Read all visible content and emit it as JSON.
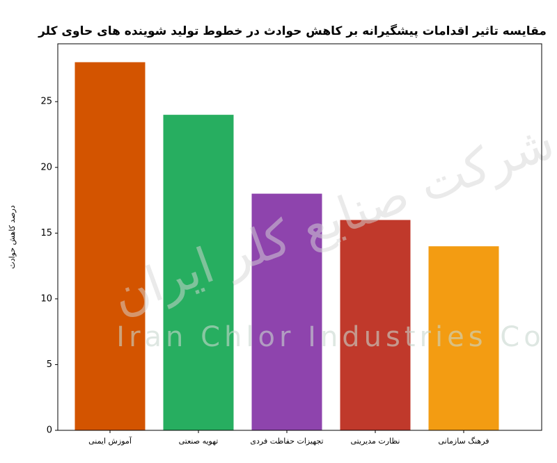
{
  "chart_data": {
    "type": "bar",
    "title": "مقایسه تاثیر اقدامات پیشگیرانه بر کاهش حوادث در خطوط تولید شوینده های حاوی کلر",
    "y_label": "درصد کاهش حوادث",
    "categories": [
      "آموزش ایمنی",
      "تهویه صنعتی",
      "تجهیزات حفاظت فردی",
      "نظارت مدیریتی",
      "فرهنگ سازمانی"
    ],
    "values": [
      28,
      24,
      18,
      16,
      14
    ],
    "colors": [
      "#d35400",
      "#27ae60",
      "#8e44ad",
      "#c0392b",
      "#f39c12"
    ],
    "ylim": [
      0,
      29.4
    ],
    "yticks": [
      0,
      5,
      10,
      15,
      20,
      25
    ],
    "watermark": [
      "Iran Chlor Industries Co",
      "شرکت صنایع کلر ایران"
    ]
  }
}
